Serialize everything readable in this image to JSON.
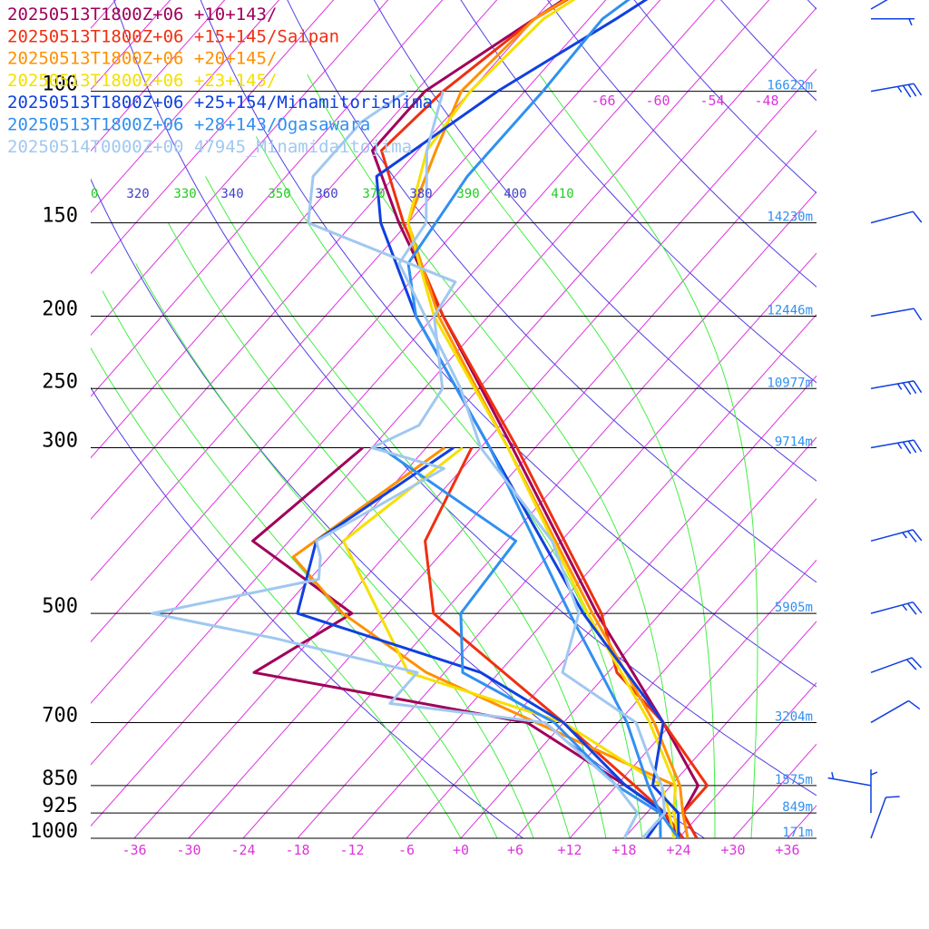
{
  "legend": [
    {
      "label": "20250513T1800Z+06 +10+143/",
      "color": "#a0005a"
    },
    {
      "label": "20250513T1800Z+06 +15+145/Saipan",
      "color": "#f03010"
    },
    {
      "label": "20250513T1800Z+06 +20+145/",
      "color": "#ff9000"
    },
    {
      "label": "20250513T1800Z+06 +23+145/",
      "color": "#f5e000"
    },
    {
      "label": "20250513T1800Z+06 +25+154/Minamitorishima",
      "color": "#1040e0"
    },
    {
      "label": "20250513T1800Z+06 +28+143/Ogasawara",
      "color": "#3090f0"
    },
    {
      "label": "20250514T0000Z+00 47945_Minamidaitojima",
      "color": "#a0c8f0"
    }
  ],
  "chart_data": {
    "type": "line",
    "chart_kind": "skew-T log-p",
    "x_ticks": [
      "-36",
      "-30",
      "-24",
      "-18",
      "-12",
      "-6",
      "+0",
      "+6",
      "+12",
      "+18",
      "+24",
      "+30",
      "+36"
    ],
    "x_tick_values": [
      -36,
      -30,
      -24,
      -18,
      -12,
      -6,
      0,
      6,
      12,
      18,
      24,
      30,
      36
    ],
    "xlim": [
      -40,
      40
    ],
    "pressure_levels": [
      {
        "p": 100,
        "label": "100",
        "height": "16622m"
      },
      {
        "p": 150,
        "label": "150",
        "height": "14230m"
      },
      {
        "p": 200,
        "label": "200",
        "height": "12446m"
      },
      {
        "p": 250,
        "label": "250",
        "height": "10977m"
      },
      {
        "p": 300,
        "label": "300",
        "height": "9714m"
      },
      {
        "p": 500,
        "label": "500",
        "height": "5905m"
      },
      {
        "p": 700,
        "label": "700",
        "height": "3204m"
      },
      {
        "p": 850,
        "label": "850",
        "height": "1575m"
      },
      {
        "p": 925,
        "label": "925",
        "height": "849m"
      },
      {
        "p": 1000,
        "label": "1000",
        "height": "171m"
      }
    ],
    "ylim_hpa": [
      1000,
      65
    ],
    "upper_temp_labels": [
      "-66",
      "-60",
      "-54",
      "-48"
    ],
    "theta_labels": [
      {
        "value": "0",
        "kind": "dry",
        "color": "#22cc22"
      },
      {
        "value": "320",
        "kind": "dry",
        "color": "#4040cc"
      },
      {
        "value": "330",
        "kind": "moist",
        "color": "#22cc22"
      },
      {
        "value": "340",
        "kind": "dry",
        "color": "#4040cc"
      },
      {
        "value": "350",
        "kind": "moist",
        "color": "#22cc22"
      },
      {
        "value": "360",
        "kind": "dry",
        "color": "#4040cc"
      },
      {
        "value": "370",
        "kind": "moist",
        "color": "#22cc22"
      },
      {
        "value": "380",
        "kind": "dry",
        "color": "#4040cc"
      },
      {
        "value": "390",
        "kind": "moist",
        "color": "#22cc22"
      },
      {
        "value": "400",
        "kind": "dry",
        "color": "#4040cc"
      },
      {
        "value": "410",
        "kind": "moist",
        "color": "#22cc22"
      }
    ],
    "grid": true,
    "isotherm_color": "#dd33dd",
    "dry_adiabat_color": "#5040e0",
    "moist_adiabat_color": "#44ee44",
    "series": [
      {
        "name": "20250513T1800Z+06 +10+143/",
        "color": "#a0005a",
        "temperature": [
          [
            1000,
            26.0
          ],
          [
            925,
            22.0
          ],
          [
            850,
            21.0
          ],
          [
            700,
            11.0
          ],
          [
            500,
            -7.0
          ],
          [
            300,
            -32.5
          ],
          [
            200,
            -53.0
          ],
          [
            150,
            -67.0
          ],
          [
            120,
            -77.0
          ],
          [
            100,
            -77.0
          ],
          [
            80,
            -72.0
          ],
          [
            70,
            -69.0
          ],
          [
            65,
            -66.0
          ]
        ],
        "dewpoint": [
          [
            1000,
            24.0
          ],
          [
            925,
            20.0
          ],
          [
            850,
            13.0
          ],
          [
            700,
            -4.0
          ],
          [
            600,
            -39.0
          ],
          [
            500,
            -34.0
          ],
          [
            400,
            -52.0
          ],
          [
            300,
            -49.0
          ]
        ]
      },
      {
        "name": "20250513T1800Z+06 +15+145/Saipan",
        "color": "#f03010",
        "temperature": [
          [
            1000,
            26.0
          ],
          [
            925,
            22.0
          ],
          [
            850,
            22.0
          ],
          [
            700,
            11.0
          ],
          [
            600,
            1.0
          ],
          [
            500,
            -6.5
          ],
          [
            300,
            -32.0
          ],
          [
            200,
            -53.0
          ],
          [
            150,
            -66.5
          ],
          [
            120,
            -76.0
          ],
          [
            100,
            -75.0
          ],
          [
            80,
            -72.0
          ],
          [
            65,
            -66.0
          ]
        ],
        "dewpoint": [
          [
            1000,
            24.5
          ],
          [
            925,
            20.0
          ],
          [
            850,
            14.0
          ],
          [
            700,
            0.0
          ],
          [
            500,
            -25.0
          ],
          [
            400,
            -33.0
          ],
          [
            300,
            -37.0
          ]
        ]
      },
      {
        "name": "20250513T1800Z+06 +20+145/",
        "color": "#ff9000",
        "temperature": [
          [
            1000,
            25.0
          ],
          [
            925,
            22.0
          ],
          [
            850,
            19.0
          ],
          [
            700,
            10.0
          ],
          [
            500,
            -7.5
          ],
          [
            300,
            -33.0
          ],
          [
            200,
            -53.5
          ],
          [
            150,
            -66.0
          ],
          [
            120,
            -70.0
          ],
          [
            100,
            -73.0
          ],
          [
            80,
            -72.0
          ],
          [
            65,
            -66.5
          ]
        ],
        "dewpoint": [
          [
            1000,
            24.0
          ],
          [
            925,
            21.0
          ],
          [
            850,
            18.5
          ],
          [
            700,
            -3.0
          ],
          [
            600,
            -20.0
          ],
          [
            500,
            -35.0
          ],
          [
            420,
            -46.0
          ],
          [
            300,
            -40.0
          ]
        ]
      },
      {
        "name": "20250513T1800Z+06 +23+145/",
        "color": "#f5e000",
        "temperature": [
          [
            1000,
            24.0
          ],
          [
            925,
            21.0
          ],
          [
            850,
            18.5
          ],
          [
            700,
            9.5
          ],
          [
            500,
            -8.0
          ],
          [
            300,
            -33.0
          ],
          [
            200,
            -54.0
          ],
          [
            150,
            -66.0
          ],
          [
            120,
            -71.0
          ],
          [
            100,
            -72.0
          ],
          [
            80,
            -71.0
          ],
          [
            65,
            -66.0
          ]
        ],
        "dewpoint": [
          [
            1000,
            23.5
          ],
          [
            925,
            20.5
          ],
          [
            850,
            17.0
          ],
          [
            700,
            0.0
          ],
          [
            600,
            -22.0
          ],
          [
            500,
            -31.0
          ],
          [
            400,
            -42.0
          ],
          [
            300,
            -38.0
          ]
        ]
      },
      {
        "name": "20250513T1800Z+06 +25+154/Minamitorishima",
        "color": "#1040e0",
        "temperature": [
          [
            1000,
            24.0
          ],
          [
            925,
            21.5
          ],
          [
            850,
            16.0
          ],
          [
            700,
            11.0
          ],
          [
            500,
            -8.5
          ],
          [
            300,
            -35.0
          ],
          [
            200,
            -56.0
          ],
          [
            150,
            -69.0
          ],
          [
            130,
            -74.0
          ],
          [
            100,
            -69.0
          ],
          [
            80,
            -63.0
          ],
          [
            65,
            -58.0
          ]
        ],
        "dewpoint": [
          [
            1000,
            20.5
          ],
          [
            925,
            20.0
          ],
          [
            850,
            13.0
          ],
          [
            700,
            0.0
          ],
          [
            600,
            -14.0
          ],
          [
            500,
            -40.0
          ],
          [
            400,
            -45.0
          ],
          [
            300,
            -39.0
          ]
        ]
      },
      {
        "name": "20250513T1800Z+06 +28+143/Ogasawara",
        "color": "#3090f0",
        "temperature": [
          [
            1000,
            24.0
          ],
          [
            925,
            19.5
          ],
          [
            850,
            15.5
          ],
          [
            700,
            7.0
          ],
          [
            500,
            -10.0
          ],
          [
            300,
            -35.0
          ],
          [
            200,
            -56.0
          ],
          [
            170,
            -62.0
          ],
          [
            130,
            -64.0
          ],
          [
            100,
            -64.0
          ],
          [
            80,
            -64.5
          ],
          [
            65,
            -61.0
          ]
        ],
        "dewpoint": [
          [
            1000,
            22.0
          ],
          [
            925,
            19.5
          ],
          [
            850,
            12.0
          ],
          [
            700,
            -1.0
          ],
          [
            600,
            -16.0
          ],
          [
            500,
            -22.0
          ],
          [
            400,
            -23.0
          ],
          [
            300,
            -47.0
          ]
        ]
      },
      {
        "name": "20250514T0000Z+00 47945_Minamidaitojima",
        "color": "#a0c8f0",
        "temperature": [
          [
            1000,
            20.0
          ],
          [
            925,
            20.0
          ],
          [
            850,
            17.0
          ],
          [
            800,
            14.0
          ],
          [
            700,
            8.0
          ],
          [
            600,
            -5.0
          ],
          [
            500,
            -9.0
          ],
          [
            400,
            -19.0
          ],
          [
            300,
            -36.0
          ],
          [
            250,
            -44.0
          ],
          [
            200,
            -55.0
          ],
          [
            170,
            -63.0
          ],
          [
            150,
            -64.0
          ],
          [
            120,
            -71.0
          ],
          [
            100,
            -75.0
          ]
        ],
        "dewpoint": [
          [
            1000,
            18.0
          ],
          [
            925,
            17.0
          ],
          [
            850,
            12.0
          ],
          [
            700,
            -2.0
          ],
          [
            660,
            -21.0
          ],
          [
            600,
            -21.0
          ],
          [
            540,
            -40.0
          ],
          [
            500,
            -56.0
          ],
          [
            450,
            -41.0
          ],
          [
            420,
            -43.0
          ],
          [
            400,
            -45.0
          ],
          [
            320,
            -38.0
          ],
          [
            300,
            -48.0
          ],
          [
            280,
            -45.0
          ],
          [
            250,
            -46.0
          ],
          [
            200,
            -54.0
          ],
          [
            180,
            -55.0
          ],
          [
            150,
            -77.0
          ],
          [
            130,
            -81.0
          ],
          [
            110,
            -81.0
          ],
          [
            100,
            -79.0
          ]
        ]
      }
    ],
    "winds": [
      {
        "p": 1000,
        "dir_deg": 200,
        "speed_kt": 10
      },
      {
        "p": 925,
        "dir_deg": 180,
        "speed_kt": 5
      },
      {
        "p": 850,
        "dir_deg": 100,
        "speed_kt": 5
      },
      {
        "p": 700,
        "dir_deg": 240,
        "speed_kt": 10
      },
      {
        "p": 600,
        "dir_deg": 250,
        "speed_kt": 20
      },
      {
        "p": 500,
        "dir_deg": 255,
        "speed_kt": 25
      },
      {
        "p": 400,
        "dir_deg": 255,
        "speed_kt": 25
      },
      {
        "p": 300,
        "dir_deg": 260,
        "speed_kt": 35
      },
      {
        "p": 250,
        "dir_deg": 260,
        "speed_kt": 35
      },
      {
        "p": 200,
        "dir_deg": 260,
        "speed_kt": 10
      },
      {
        "p": 150,
        "dir_deg": 255,
        "speed_kt": 10
      },
      {
        "p": 100,
        "dir_deg": 260,
        "speed_kt": 35
      },
      {
        "p": 80,
        "dir_deg": 270,
        "speed_kt": 5
      },
      {
        "p": 64,
        "dir_deg": 240,
        "speed_kt": 10
      }
    ]
  }
}
